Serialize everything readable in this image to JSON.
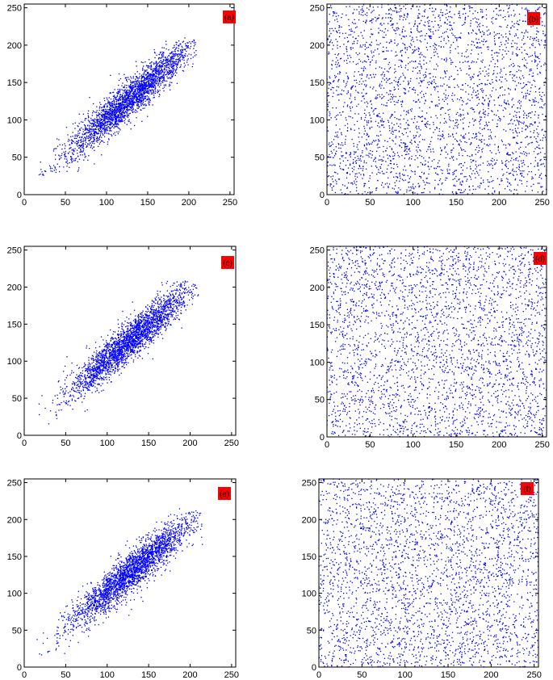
{
  "colors": {
    "marker": "#0000ff",
    "label_bg": "#ff0000",
    "axes": "#000000"
  },
  "chart_data": [
    {
      "type": "scatter",
      "panel_label": "(a)",
      "title": "",
      "xlabel": "",
      "ylabel": "",
      "xlim": [
        0,
        255
      ],
      "ylim": [
        0,
        255
      ],
      "xticks": [
        0,
        50,
        100,
        150,
        200,
        250
      ],
      "yticks": [
        0,
        50,
        100,
        150,
        200,
        250
      ],
      "legend": "none",
      "grid": false,
      "distribution": {
        "kind": "correlated",
        "center": [
          128,
          128
        ],
        "min": 20,
        "max": 205,
        "correlation": 0.9,
        "points": 2600
      }
    },
    {
      "type": "scatter",
      "panel_label": "(b)",
      "title": "",
      "xlabel": "",
      "ylabel": "",
      "xlim": [
        0,
        255
      ],
      "ylim": [
        0,
        255
      ],
      "xticks": [
        0,
        50,
        100,
        150,
        200,
        250
      ],
      "yticks": [
        0,
        50,
        100,
        150,
        200,
        250
      ],
      "legend": "none",
      "grid": false,
      "distribution": {
        "kind": "uniform",
        "min": 0,
        "max": 255,
        "points": 3000
      }
    },
    {
      "type": "scatter",
      "panel_label": "(c)",
      "title": "",
      "xlabel": "",
      "ylabel": "",
      "xlim": [
        0,
        255
      ],
      "ylim": [
        0,
        255
      ],
      "xticks": [
        0,
        50,
        100,
        150,
        200,
        250
      ],
      "yticks": [
        0,
        50,
        100,
        150,
        200,
        250
      ],
      "legend": "none",
      "grid": false,
      "distribution": {
        "kind": "correlated",
        "center": [
          128,
          128
        ],
        "min": 20,
        "max": 205,
        "correlation": 0.9,
        "points": 2600
      }
    },
    {
      "type": "scatter",
      "panel_label": "(d)",
      "title": "",
      "xlabel": "",
      "ylabel": "",
      "xlim": [
        0,
        255
      ],
      "ylim": [
        0,
        255
      ],
      "xticks": [
        0,
        50,
        100,
        150,
        200,
        250
      ],
      "yticks": [
        0,
        50,
        100,
        150,
        200,
        250
      ],
      "legend": "none",
      "grid": false,
      "distribution": {
        "kind": "uniform",
        "min": 0,
        "max": 255,
        "points": 3000
      }
    },
    {
      "type": "scatter",
      "panel_label": "(e)",
      "title": "",
      "xlabel": "",
      "ylabel": "",
      "xlim": [
        0,
        255
      ],
      "ylim": [
        0,
        255
      ],
      "xticks": [
        0,
        50,
        100,
        150,
        200,
        250
      ],
      "yticks": [
        0,
        50,
        100,
        150,
        200,
        250
      ],
      "legend": "none",
      "grid": false,
      "distribution": {
        "kind": "correlated",
        "center": [
          128,
          128
        ],
        "min": 15,
        "max": 210,
        "correlation": 0.88,
        "points": 2600
      }
    },
    {
      "type": "scatter",
      "panel_label": "(f)",
      "title": "",
      "xlabel": "",
      "ylabel": "",
      "xlim": [
        0,
        255
      ],
      "ylim": [
        0,
        255
      ],
      "xticks": [
        0,
        50,
        100,
        150,
        200,
        250
      ],
      "yticks": [
        0,
        50,
        100,
        150,
        200,
        250
      ],
      "legend": "none",
      "grid": false,
      "distribution": {
        "kind": "uniform",
        "min": 0,
        "max": 255,
        "points": 3000
      }
    }
  ]
}
